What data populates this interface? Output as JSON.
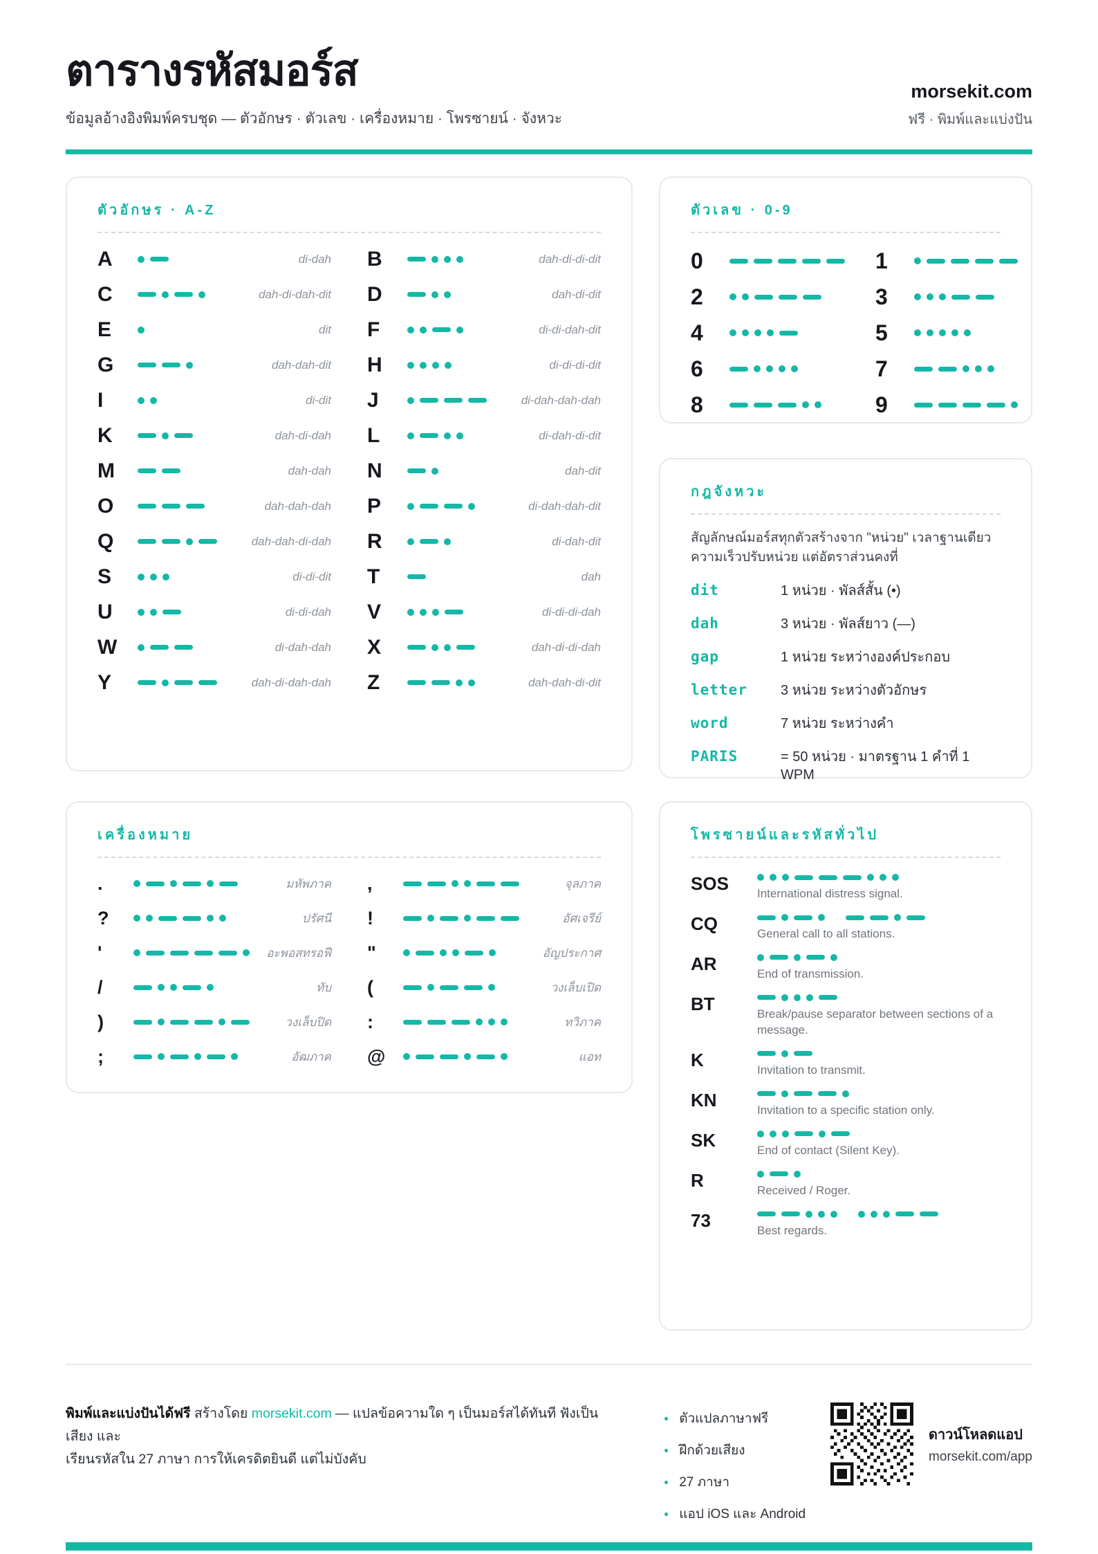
{
  "colors": {
    "accent": "#14b8a6",
    "ink": "#16181d",
    "muted_gray": "#8d939c"
  },
  "header": {
    "title": "ตารางรหัสมอร์ส",
    "subtitle": "ข้อมูลอ้างอิงพิมพ์ครบชุด — ตัวอักษร · ตัวเลข · เครื่องหมาย · โพรซายน์ · จังหวะ",
    "brand": "morsekit.com",
    "brand_sub": "ฟรี · พิมพ์และแบ่งปัน"
  },
  "sections": {
    "letters": {
      "title": "ตัวอักษร · A-Z",
      "items": [
        {
          "char": "A",
          "code": ".-",
          "mnemonic": "di-dah"
        },
        {
          "char": "B",
          "code": "-...",
          "mnemonic": "dah-di-di-dit"
        },
        {
          "char": "C",
          "code": "-.-.",
          "mnemonic": "dah-di-dah-dit"
        },
        {
          "char": "D",
          "code": "-..",
          "mnemonic": "dah-di-dit"
        },
        {
          "char": "E",
          "code": ".",
          "mnemonic": "dit"
        },
        {
          "char": "F",
          "code": "..-.",
          "mnemonic": "di-di-dah-dit"
        },
        {
          "char": "G",
          "code": "--.",
          "mnemonic": "dah-dah-dit"
        },
        {
          "char": "H",
          "code": "....",
          "mnemonic": "di-di-di-dit"
        },
        {
          "char": "I",
          "code": "..",
          "mnemonic": "di-dit"
        },
        {
          "char": "J",
          "code": ".---",
          "mnemonic": "di-dah-dah-dah"
        },
        {
          "char": "K",
          "code": "-.-",
          "mnemonic": "dah-di-dah"
        },
        {
          "char": "L",
          "code": ".-..",
          "mnemonic": "di-dah-di-dit"
        },
        {
          "char": "M",
          "code": "--",
          "mnemonic": "dah-dah"
        },
        {
          "char": "N",
          "code": "-.",
          "mnemonic": "dah-dit"
        },
        {
          "char": "O",
          "code": "---",
          "mnemonic": "dah-dah-dah"
        },
        {
          "char": "P",
          "code": ".--.",
          "mnemonic": "di-dah-dah-dit"
        },
        {
          "char": "Q",
          "code": "--.-",
          "mnemonic": "dah-dah-di-dah"
        },
        {
          "char": "R",
          "code": ".-.",
          "mnemonic": "di-dah-dit"
        },
        {
          "char": "S",
          "code": "...",
          "mnemonic": "di-di-dit"
        },
        {
          "char": "T",
          "code": "-",
          "mnemonic": "dah"
        },
        {
          "char": "U",
          "code": "..-",
          "mnemonic": "di-di-dah"
        },
        {
          "char": "V",
          "code": "...-",
          "mnemonic": "di-di-di-dah"
        },
        {
          "char": "W",
          "code": ".--",
          "mnemonic": "di-dah-dah"
        },
        {
          "char": "X",
          "code": "-..-",
          "mnemonic": "dah-di-di-dah"
        },
        {
          "char": "Y",
          "code": "-.--",
          "mnemonic": "dah-di-dah-dah"
        },
        {
          "char": "Z",
          "code": "--..",
          "mnemonic": "dah-dah-di-dit"
        }
      ]
    },
    "numbers": {
      "title": "ตัวเลข · 0-9",
      "items": [
        {
          "char": "0",
          "code": "-----"
        },
        {
          "char": "1",
          "code": ".----"
        },
        {
          "char": "2",
          "code": "..---"
        },
        {
          "char": "3",
          "code": "...--"
        },
        {
          "char": "4",
          "code": "....-"
        },
        {
          "char": "5",
          "code": "....."
        },
        {
          "char": "6",
          "code": "-...."
        },
        {
          "char": "7",
          "code": "--..."
        },
        {
          "char": "8",
          "code": "---.."
        },
        {
          "char": "9",
          "code": "----."
        }
      ]
    },
    "timing": {
      "title": "กฎจังหวะ",
      "intro": "สัญลักษณ์มอร์สทุกตัวสร้างจาก \"หน่วย\" เวลาฐานเดียว ความเร็วปรับหน่วย แต่อัตราส่วนคงที่",
      "rules": [
        {
          "key": "dit",
          "desc": "1 หน่วย · พัลส์สั้น (•)"
        },
        {
          "key": "dah",
          "desc": "3 หน่วย · พัลส์ยาว (—)"
        },
        {
          "key": "gap",
          "desc": "1 หน่วย ระหว่างองค์ประกอบ"
        },
        {
          "key": "letter",
          "desc": "3 หน่วย ระหว่างตัวอักษร"
        },
        {
          "key": "word",
          "desc": "7 หน่วย ระหว่างคำ"
        },
        {
          "key": "PARIS",
          "desc": "= 50 หน่วย · มาตรฐาน 1 คำที่ 1 WPM"
        }
      ]
    },
    "punctuation": {
      "title": "เครื่องหมาย",
      "items": [
        {
          "char": ".",
          "code": ".-.-.-",
          "name": "มหัพภาค"
        },
        {
          "char": ",",
          "code": "--..--",
          "name": "จุลภาค"
        },
        {
          "char": "?",
          "code": "..--..",
          "name": "ปรัศนี"
        },
        {
          "char": "!",
          "code": "-.-.--",
          "name": "อัศเจรีย์"
        },
        {
          "char": "'",
          "code": ".----.",
          "name": "อะพอสทรอฟี"
        },
        {
          "char": "\"",
          "code": ".-..-.",
          "name": "อัญประกาศ"
        },
        {
          "char": "/",
          "code": "-..-.",
          "name": "ทับ"
        },
        {
          "char": "(",
          "code": "-.--.",
          "name": "วงเล็บเปิด"
        },
        {
          "char": ")",
          "code": "-.--.-",
          "name": "วงเล็บปิด"
        },
        {
          "char": ":",
          "code": "---...",
          "name": "ทวิภาค"
        },
        {
          "char": ";",
          "code": "-.-.-.",
          "name": "อัฒภาค"
        },
        {
          "char": "@",
          "code": ".--.-.",
          "name": "แอท"
        }
      ]
    },
    "prosigns": {
      "title": "โพรซายน์และรหัสทั่วไป",
      "items": [
        {
          "sign": "SOS",
          "code": "...---...",
          "desc": "International distress signal."
        },
        {
          "sign": "CQ",
          "code": "-.-. --.-",
          "desc": "General call to all stations."
        },
        {
          "sign": "AR",
          "code": ".-.-.",
          "desc": "End of transmission."
        },
        {
          "sign": "BT",
          "code": "-...-",
          "desc": "Break/pause separator between sections of a message."
        },
        {
          "sign": "K",
          "code": "-.-",
          "desc": "Invitation to transmit."
        },
        {
          "sign": "KN",
          "code": "-.--.",
          "desc": "Invitation to a specific station only."
        },
        {
          "sign": "SK",
          "code": "...-.-",
          "desc": "End of contact (Silent Key)."
        },
        {
          "sign": "R",
          "code": ".-.",
          "desc": "Received / Roger."
        },
        {
          "sign": "73",
          "code": "--... ...--",
          "desc": "Best regards."
        }
      ]
    }
  },
  "footer": {
    "free_bold": "พิมพ์และแบ่งปันได้ฟรี",
    "created_by": "สร้างโดย",
    "link": "morsekit.com",
    "line1_rest": "— แปลข้อความใด ๆ เป็นมอร์สได้ทันที ฟังเป็นเสียง และ",
    "line2": "เรียนรหัสใน 27 ภาษา การให้เครดิตยินดี แต่ไม่บังคับ",
    "features": [
      "ตัวแปลภาษาฟรี",
      "ฝึกด้วยเสียง",
      "27 ภาษา",
      "แอป iOS และ Android"
    ],
    "download_title": "ดาวน์โหลดแอป",
    "download_url": "morsekit.com/app"
  }
}
